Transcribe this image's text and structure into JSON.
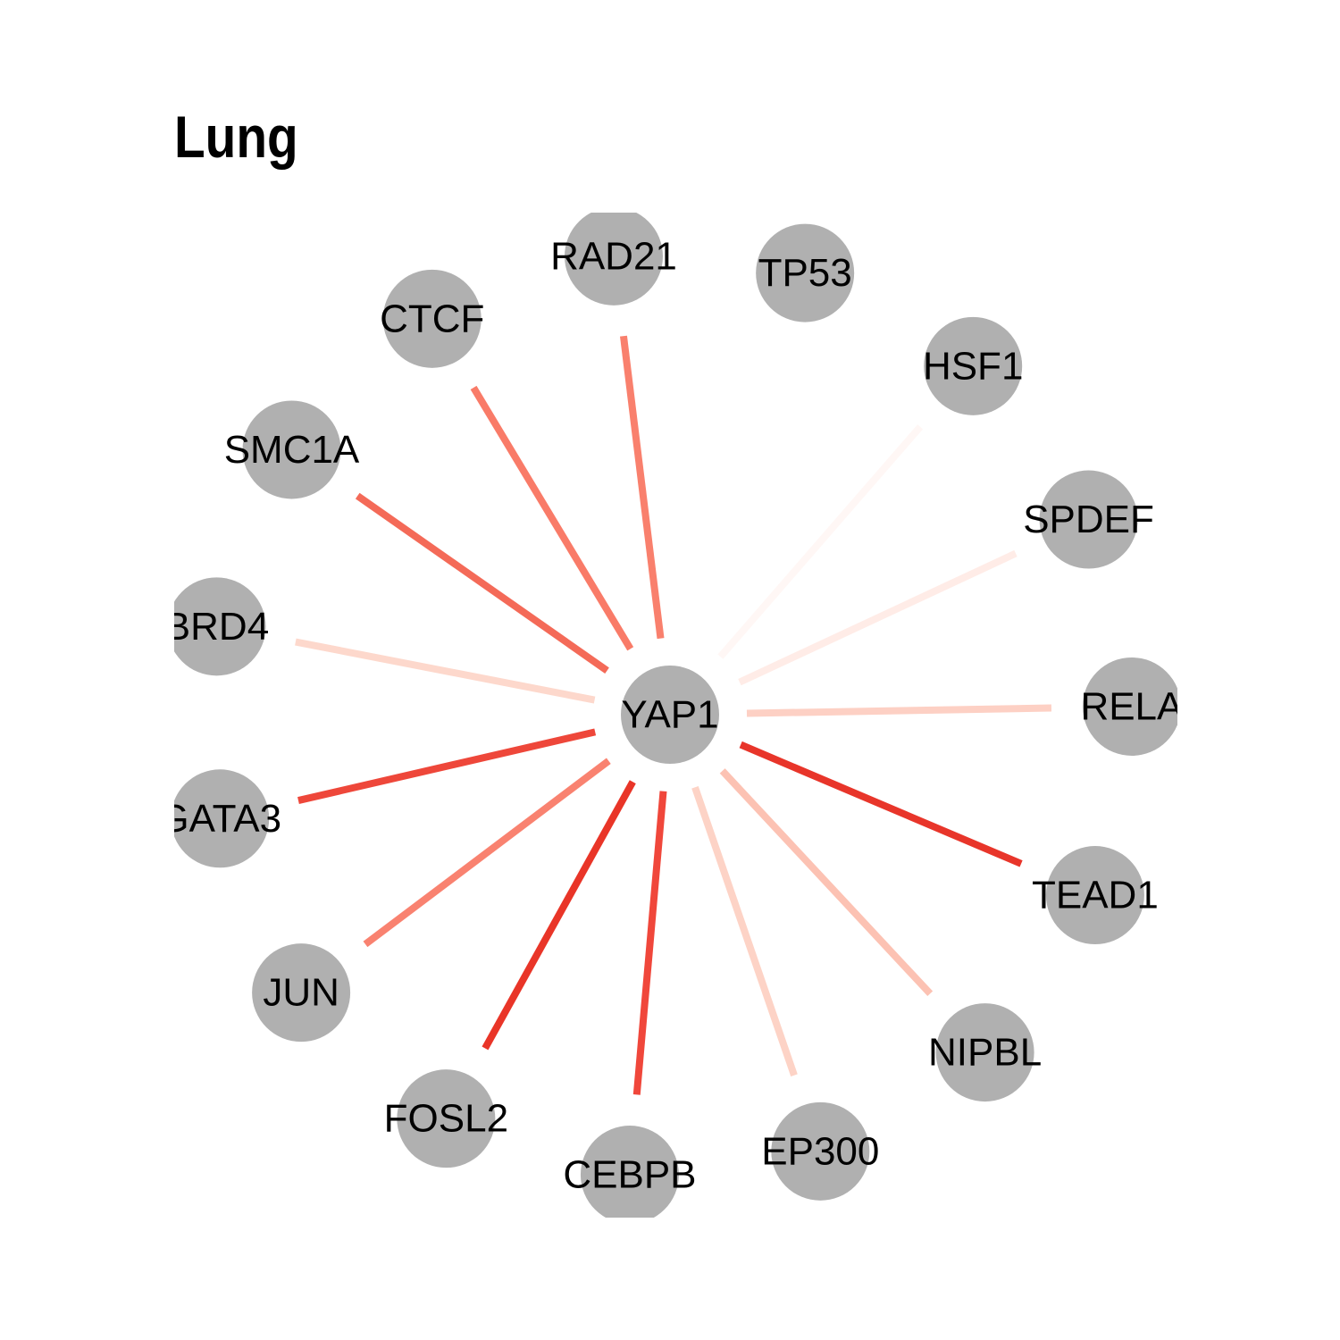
{
  "title": "Lung",
  "center": {
    "label": "YAP1"
  },
  "node_color": "#b0b0b0",
  "nodes": [
    {
      "label": "RAD21",
      "edge_color": "#f9806d"
    },
    {
      "label": "TP53",
      "edge_color": null
    },
    {
      "label": "HSF1",
      "edge_color": "#fff7f5"
    },
    {
      "label": "SPDEF",
      "edge_color": "#ffece7"
    },
    {
      "label": "RELA",
      "edge_color": "#fdd0c4"
    },
    {
      "label": "TEAD1",
      "edge_color": "#e8352a"
    },
    {
      "label": "NIPBL",
      "edge_color": "#fcc2b3"
    },
    {
      "label": "EP300",
      "edge_color": "#fdd3c6"
    },
    {
      "label": "CEBPB",
      "edge_color": "#f0473b"
    },
    {
      "label": "FOSL2",
      "edge_color": "#e93528"
    },
    {
      "label": "JUN",
      "edge_color": "#f98270"
    },
    {
      "label": "GATA3",
      "edge_color": "#ee473a"
    },
    {
      "label": "BRD4",
      "edge_color": "#fdd8cc"
    },
    {
      "label": "SMC1A",
      "edge_color": "#f46a58"
    },
    {
      "label": "CTCF",
      "edge_color": "#f97b68"
    }
  ]
}
